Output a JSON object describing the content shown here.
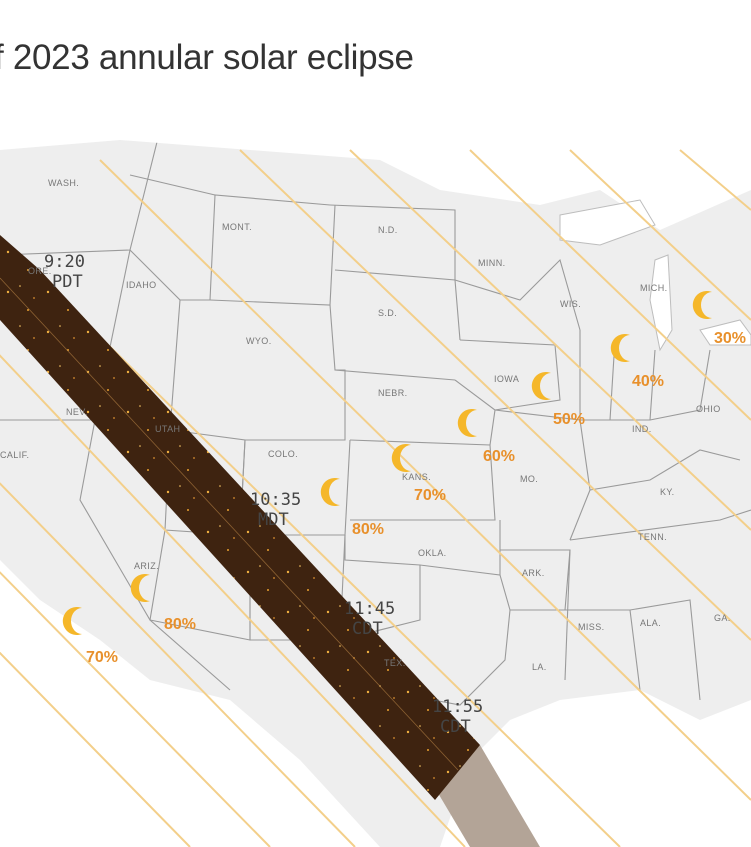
{
  "title": "f 2023 annular solar eclipse",
  "colors": {
    "path": "#3e2310",
    "path_shadow": "#b3a497",
    "contour": "#f3cf8a",
    "moon": "#f5b72a",
    "pct": "#e8902b",
    "borders": "#9a9a9a",
    "land": "#eeeeee"
  },
  "state_labels": [
    "WASH.",
    "ORE.",
    "IDAHO",
    "MONT.",
    "N.D.",
    "MINN.",
    "S.D.",
    "WYO.",
    "WIS.",
    "MICH.",
    "NEBR.",
    "IOWA",
    "NEV.",
    "UTAH",
    "COLO.",
    "KANS.",
    "MO.",
    "IND.",
    "OHIO",
    "KY.",
    "CALIF.",
    "ARIZ.",
    "OKLA.",
    "ARK.",
    "TENN.",
    "MISS.",
    "ALA.",
    "GA.",
    "TEX.",
    "LA."
  ],
  "times": [
    {
      "time": "9:20",
      "zone": "PDT"
    },
    {
      "time": "10:35",
      "zone": "MDT"
    },
    {
      "time": "11:45",
      "zone": "CDT"
    },
    {
      "time": "11:55",
      "zone": "CDT"
    }
  ],
  "coverage_markers": [
    {
      "label": "30%",
      "icon": "crescent-moon"
    },
    {
      "label": "40%",
      "icon": "crescent-moon"
    },
    {
      "label": "50%",
      "icon": "crescent-moon"
    },
    {
      "label": "60%",
      "icon": "crescent-moon"
    },
    {
      "label": "70%",
      "icon": "crescent-moon"
    },
    {
      "label": "80%",
      "icon": "crescent-moon"
    },
    {
      "label": "80%",
      "icon": "crescent-moon"
    },
    {
      "label": "70%",
      "icon": "crescent-moon"
    }
  ]
}
